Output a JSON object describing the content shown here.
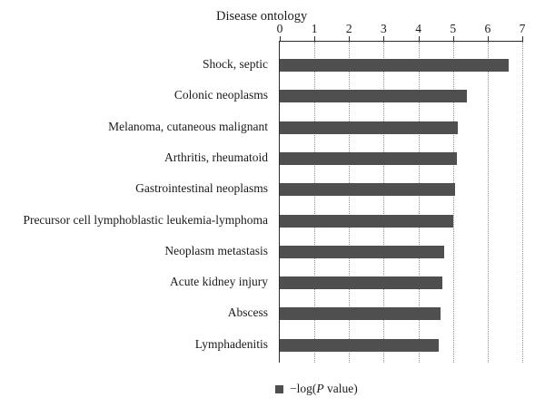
{
  "chart_data": {
    "type": "bar",
    "orientation": "horizontal",
    "title": "Disease ontology",
    "categories": [
      "Shock, septic",
      "Colonic neoplasms",
      "Melanoma, cutaneous malignant",
      "Arthritis, rheumatoid",
      "Gastrointestinal neoplasms",
      "Precursor cell lymphoblastic leukemia-lymphoma",
      "Neoplasm metastasis",
      "Acute kidney injury",
      "Abscess",
      "Lymphadenitis"
    ],
    "values": [
      6.6,
      5.4,
      5.15,
      5.1,
      5.05,
      5.0,
      4.75,
      4.7,
      4.65,
      4.6
    ],
    "xlim": [
      0,
      7
    ],
    "x_ticks": [
      0,
      1,
      2,
      3,
      4,
      5,
      6,
      7
    ],
    "xlabel": "",
    "ylabel": "",
    "bar_color": "#4f4f4f",
    "grid": "vertical-dotted",
    "legend_position": "bottom",
    "legend": {
      "prefix": "−log(",
      "italic": "P",
      "suffix": " value)"
    }
  }
}
